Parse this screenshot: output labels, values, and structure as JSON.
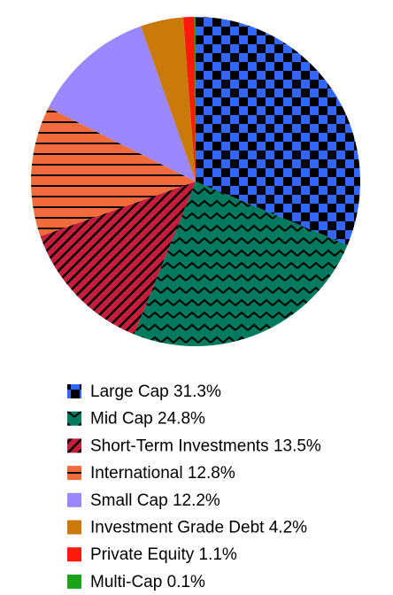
{
  "chart_data": {
    "type": "pie",
    "categories": [
      "Large Cap",
      "Mid Cap",
      "Short-Term Investments",
      "International",
      "Small Cap",
      "Investment Grade Debt",
      "Private Equity",
      "Multi-Cap"
    ],
    "values": [
      31.3,
      24.8,
      13.5,
      12.8,
      12.2,
      4.2,
      1.1,
      0.1
    ],
    "value_labels": [
      "31.3%",
      "24.8%",
      "13.5%",
      "12.8%",
      "12.2%",
      "4.2%",
      "1.1%",
      "0.1%"
    ],
    "colors": [
      "#3366ff",
      "#007a5e",
      "#c41e3a",
      "#f26b3a",
      "#9b87ff",
      "#c97a0a",
      "#ff1a0d",
      "#1aa31a"
    ],
    "patterns": [
      "checker",
      "zigzag",
      "diagonal",
      "horizontal",
      null,
      null,
      null,
      null
    ],
    "legend": "bottom"
  }
}
